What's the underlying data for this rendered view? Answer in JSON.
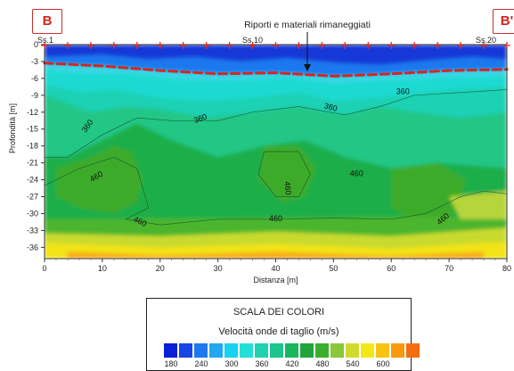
{
  "labels": {
    "left": "B",
    "right": "B'",
    "annotation": "Riporti e materiali rimaneggiati"
  },
  "chart_data": {
    "type": "heatmap",
    "xlabel": "Distanza [m]",
    "ylabel": "Profondità [m]",
    "xlim": [
      0,
      80
    ],
    "ylim": [
      -38,
      0
    ],
    "xticks": [
      "0",
      "10",
      "20",
      "30",
      "40",
      "50",
      "60",
      "70",
      "80"
    ],
    "yticks": [
      "0",
      "-3",
      "-6",
      "-9",
      "-12",
      "-15",
      "-18",
      "-21",
      "-24",
      "-27",
      "-30",
      "-33",
      "-36"
    ],
    "stations": [
      {
        "name": "Ss.1",
        "x": 0
      },
      {
        "name": "Ss.10",
        "x": 36
      },
      {
        "name": "Ss.20",
        "x": 76
      }
    ],
    "sensor_x": [
      0,
      4,
      8,
      12,
      16,
      20,
      24,
      28,
      32,
      36,
      40,
      44,
      48,
      52,
      56,
      60,
      64,
      68,
      72,
      76,
      80
    ],
    "fill_boundary_depth": [
      {
        "x": 0,
        "depth": -3.3
      },
      {
        "x": 10,
        "depth": -3.8
      },
      {
        "x": 20,
        "depth": -4.6
      },
      {
        "x": 30,
        "depth": -5.2
      },
      {
        "x": 40,
        "depth": -5.0
      },
      {
        "x": 50,
        "depth": -5.6
      },
      {
        "x": 60,
        "depth": -5.2
      },
      {
        "x": 70,
        "depth": -4.6
      },
      {
        "x": 80,
        "depth": -4.4
      }
    ],
    "contour_labels": [
      {
        "text": "360",
        "x": 7.5,
        "depth": -14.5,
        "angle": -55
      },
      {
        "text": "360",
        "x": 27,
        "depth": -13.2,
        "angle": -20
      },
      {
        "text": "360",
        "x": 49.5,
        "depth": -11.2,
        "angle": 15
      },
      {
        "text": "360",
        "x": 62,
        "depth": -8.4,
        "angle": 0
      },
      {
        "text": "460",
        "x": 9,
        "depth": -23.5,
        "angle": -30
      },
      {
        "text": "460",
        "x": 42,
        "depth": -25.5,
        "angle": 85
      },
      {
        "text": "460",
        "x": 54,
        "depth": -23,
        "angle": 0
      },
      {
        "text": "460",
        "x": 16.5,
        "depth": -31.5,
        "angle": 25
      },
      {
        "text": "460",
        "x": 40,
        "depth": -31,
        "angle": 0
      },
      {
        "text": "460",
        "x": 69,
        "depth": -31,
        "angle": -40
      }
    ],
    "legend": {
      "title": "SCALA DEI COLORI",
      "subtitle": "Velocità onde di taglio (m/s)",
      "tick_labels": [
        "180",
        "240",
        "300",
        "360",
        "420",
        "480",
        "540",
        "600"
      ],
      "colors": [
        "#0a1fd6",
        "#1646e6",
        "#1e78ee",
        "#23a6f0",
        "#19d2f0",
        "#22e0d8",
        "#20d2b0",
        "#1cc58e",
        "#1ab55f",
        "#20a33c",
        "#3cae2e",
        "#8cc63c",
        "#cfdc2e",
        "#f2e818",
        "#f8c414",
        "#f89a10",
        "#f46e10"
      ]
    }
  }
}
